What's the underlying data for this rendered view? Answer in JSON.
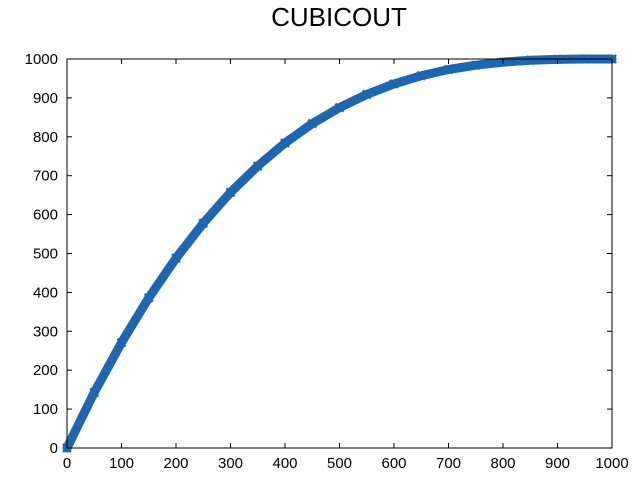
{
  "chart_data": {
    "type": "line",
    "title": "CUBICOUT",
    "xlabel": "",
    "ylabel": "",
    "xlim": [
      0,
      1000
    ],
    "ylim": [
      0,
      1000
    ],
    "xticks": [
      0,
      100,
      200,
      300,
      400,
      500,
      600,
      700,
      800,
      900,
      1000
    ],
    "yticks": [
      0,
      100,
      200,
      300,
      400,
      500,
      600,
      700,
      800,
      900,
      1000
    ],
    "grid": false,
    "legend": "none",
    "series": [
      {
        "color": "#1f66b0",
        "marker": "x",
        "x": [
          0,
          50,
          100,
          150,
          200,
          250,
          300,
          350,
          400,
          450,
          500,
          550,
          600,
          650,
          700,
          750,
          800,
          850,
          900,
          950,
          1000
        ],
        "y": [
          0,
          143,
          271,
          386,
          488,
          578,
          657,
          725,
          784,
          834,
          875,
          909,
          936,
          957,
          973,
          984,
          992,
          997,
          999,
          1000,
          1000
        ]
      }
    ]
  }
}
